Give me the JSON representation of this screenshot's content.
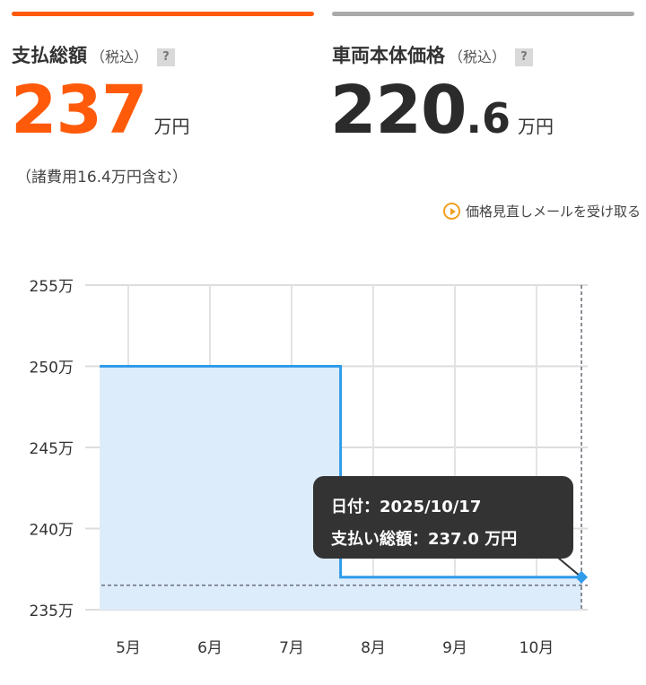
{
  "colors": {
    "accent": "#ff5a0a",
    "neutral_bar": "#aaaaaa",
    "line": "#2f9be9",
    "area": "#dcecfb",
    "tooltip_bg": "#333333"
  },
  "total_payment": {
    "label": "支払総額",
    "tax_note": "（税込）",
    "help": "?",
    "value": "237",
    "unit": "万円",
    "fees_note": "（諸費用16.4万円含む）"
  },
  "vehicle_price": {
    "label": "車両本体価格",
    "tax_note": "（税込）",
    "help": "?",
    "value_int": "220",
    "value_dec": ".6",
    "unit": "万円"
  },
  "price_alert_link": "価格見直しメールを受け取る",
  "chart_data": {
    "type": "line",
    "step": true,
    "title": "",
    "xlabel": "",
    "ylabel": "",
    "categories": [
      "5月",
      "6月",
      "7月",
      "8月",
      "9月",
      "10月"
    ],
    "y_ticks": [
      "255万",
      "250万",
      "245万",
      "240万",
      "235万"
    ],
    "ylim": [
      235,
      255
    ],
    "xlim_months": [
      4.65,
      10.6
    ],
    "grid": true,
    "series": [
      {
        "values_x_month": [
          4.65,
          7.6,
          7.6,
          10.55
        ],
        "values_y": [
          250,
          250,
          237,
          237
        ]
      }
    ],
    "tooltip": {
      "date_line": "日付：2025/10/17",
      "value_line": "支払い総額：237.0 万円"
    }
  }
}
